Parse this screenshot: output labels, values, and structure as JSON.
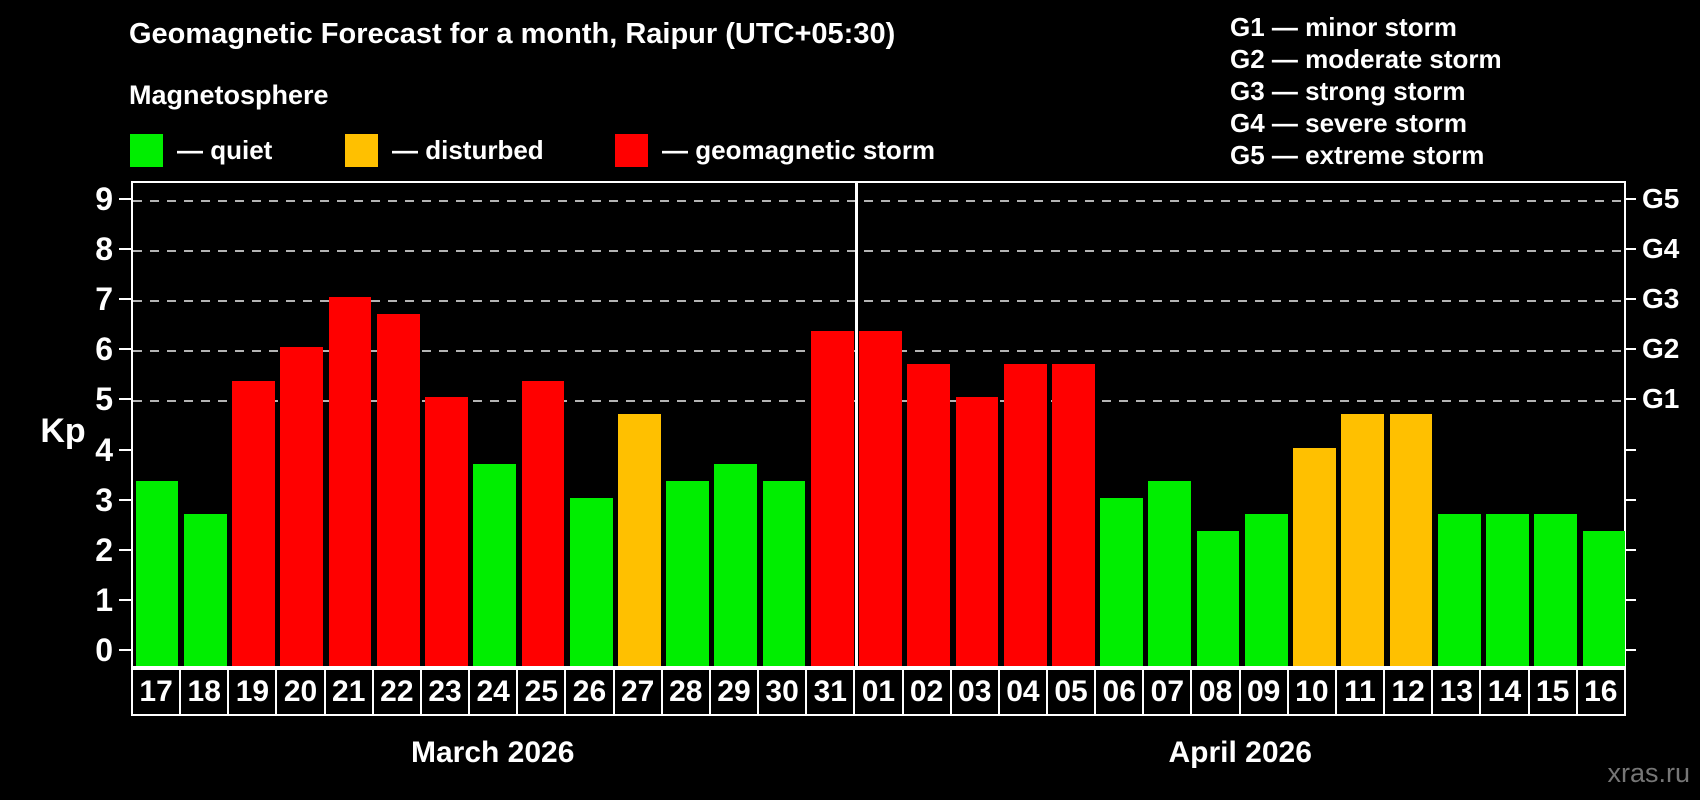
{
  "header": {
    "title": "Geomagnetic Forecast for a month, Raipur (UTC+05:30)",
    "subtitle": "Magnetosphere"
  },
  "legend": {
    "items": [
      {
        "key": "quiet",
        "label": "— quiet",
        "color": "#00ee00"
      },
      {
        "key": "disturbed",
        "label": "— disturbed",
        "color": "#ffc000"
      },
      {
        "key": "storm",
        "label": "— geomagnetic storm",
        "color": "#ff0000"
      }
    ]
  },
  "g_legend": [
    "G1 — minor storm",
    "G2 — moderate storm",
    "G3 — strong storm",
    "G4 — severe storm",
    "G5 — extreme storm"
  ],
  "axis": {
    "y_label": "Kp",
    "y_ticks": [
      0,
      1,
      2,
      3,
      4,
      5,
      6,
      7,
      8,
      9
    ],
    "right_labels": [
      {
        "label": "G1",
        "value": 5
      },
      {
        "label": "G2",
        "value": 6
      },
      {
        "label": "G3",
        "value": 7
      },
      {
        "label": "G4",
        "value": 8
      },
      {
        "label": "G5",
        "value": 9
      }
    ]
  },
  "watermark": "xras.ru",
  "chart_data": {
    "type": "bar",
    "title": "Geomagnetic Forecast for a month, Raipur (UTC+05:30)",
    "xlabel": "",
    "ylabel": "Kp",
    "ylim": [
      0,
      9
    ],
    "grid": "dashed horizontal lines at Kp 5-9 (G1-G5)",
    "categories": [
      "17",
      "18",
      "19",
      "20",
      "21",
      "22",
      "23",
      "24",
      "25",
      "26",
      "27",
      "28",
      "29",
      "30",
      "31",
      "01",
      "02",
      "03",
      "04",
      "05",
      "06",
      "07",
      "08",
      "09",
      "10",
      "11",
      "12",
      "13",
      "14",
      "15",
      "16"
    ],
    "values": [
      3.33,
      2.67,
      5.33,
      6,
      7,
      6.67,
      5,
      3.67,
      5.33,
      3,
      4.67,
      3.33,
      3.67,
      3.33,
      6.33,
      6.33,
      5.67,
      5,
      5.67,
      5.67,
      3,
      3.33,
      2.33,
      2.67,
      4,
      4.67,
      4.67,
      2.67,
      2.67,
      2.67,
      2.33
    ],
    "statuses": [
      "quiet",
      "quiet",
      "storm",
      "storm",
      "storm",
      "storm",
      "storm",
      "quiet",
      "storm",
      "quiet",
      "disturbed",
      "quiet",
      "quiet",
      "quiet",
      "storm",
      "storm",
      "storm",
      "storm",
      "storm",
      "storm",
      "quiet",
      "quiet",
      "quiet",
      "quiet",
      "disturbed",
      "disturbed",
      "disturbed",
      "quiet",
      "quiet",
      "quiet",
      "quiet"
    ],
    "gridlines": [
      5,
      6,
      7,
      8,
      9
    ],
    "x_groups": [
      {
        "label": "March 2026",
        "days": 15
      },
      {
        "label": "April 2026",
        "days": 16
      }
    ]
  }
}
